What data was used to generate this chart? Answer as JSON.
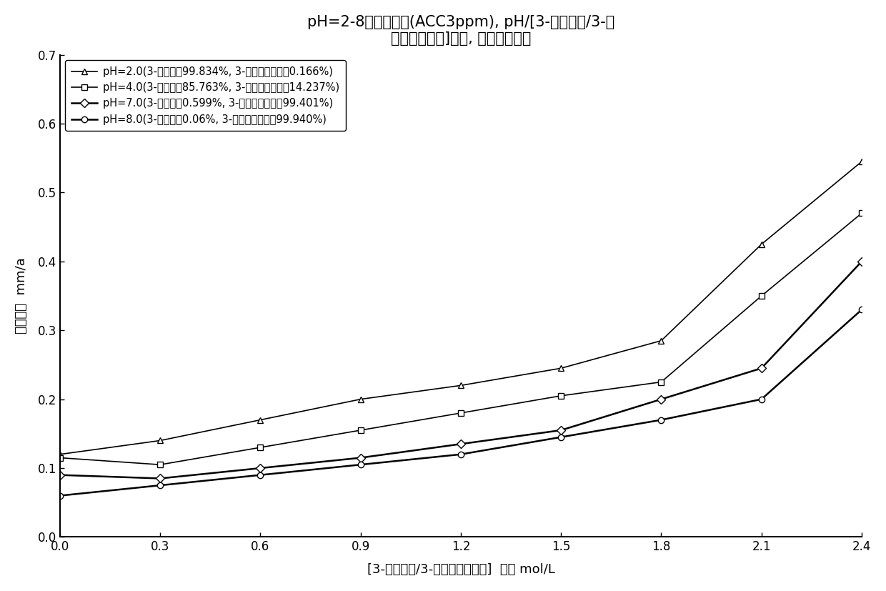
{
  "title_line1": "pH=2-8氧化性体系(ACC3ppm), pH/[3-甲基丁酸/3-甲",
  "title_line2": "基丁酸根离子]协同, 对铜的腑蚀性",
  "xlabel": "[3-甲基丁酸/3-甲基丁酸根离子]  含量 mol/L",
  "ylabel": "腑蚀速率  mm/a",
  "xlim": [
    0,
    2.4
  ],
  "ylim": [
    0,
    0.7
  ],
  "xticks": [
    0,
    0.3,
    0.6,
    0.9,
    1.2,
    1.5,
    1.8,
    2.1,
    2.4
  ],
  "yticks": [
    0,
    0.1,
    0.2,
    0.3,
    0.4,
    0.5,
    0.6,
    0.7
  ],
  "x": [
    0,
    0.3,
    0.6,
    0.9,
    1.2,
    1.5,
    1.8,
    2.1,
    2.4
  ],
  "series": [
    {
      "label": "pH=2.0(3-甲基丁酸 99.834%, 3-甲基丁酸根离子0.166%)",
      "label_orig": "pH=2.0(3-甲基丁酸9 9.834%, 3-甲基丁酸根离子0.166%)",
      "y": [
        0.12,
        0.14,
        0.17,
        0.2,
        0.22,
        0.245,
        0.285,
        0.425,
        0.545
      ],
      "marker": "^",
      "linewidth": 1.2
    },
    {
      "label": "pH=4.0(3-甲基丁酸8 5.763%, 3-甲基丁酸根离子14.237%)",
      "y": [
        0.115,
        0.105,
        0.13,
        0.155,
        0.18,
        0.205,
        0.225,
        0.35,
        0.47
      ],
      "marker": "s",
      "linewidth": 1.2
    },
    {
      "label": "pH=7.0(3-甲基丁酸0. 599%, 3-甲基丁酸根离子99.401%)",
      "y": [
        0.09,
        0.085,
        0.1,
        0.115,
        0.135,
        0.155,
        0.2,
        0.245,
        0.4
      ],
      "marker": "D",
      "linewidth": 1.8
    },
    {
      "label": "pH=8.0(3-甲基丁酸0.06%, 3-甲基丁酸根离子99.940%)",
      "y": [
        0.06,
        0.075,
        0.09,
        0.105,
        0.12,
        0.145,
        0.17,
        0.2,
        0.33
      ],
      "marker": "o",
      "linewidth": 1.8
    }
  ],
  "background_color": "#ffffff",
  "legend_fontsize": 10.5,
  "title_fontsize": 15,
  "axis_label_fontsize": 13,
  "tick_fontsize": 12
}
